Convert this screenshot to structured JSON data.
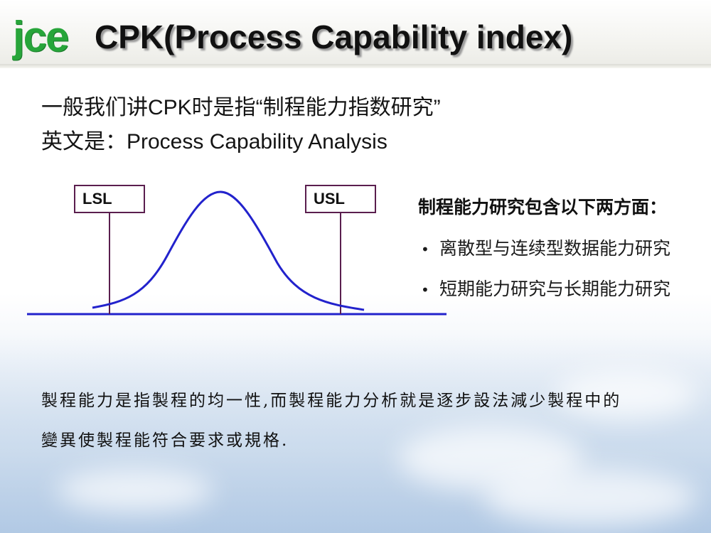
{
  "header": {
    "logo": "jce",
    "title": "CPK(Process Capability index)"
  },
  "intro": {
    "line1": "一般我们讲CPK时是指“制程能力指数研究”",
    "line2": "英文是：Process Capability Analysis"
  },
  "diagram": {
    "lsl_label": "LSL",
    "usl_label": "USL",
    "colors": {
      "curve": "#2222cc",
      "baseline": "#2222cc",
      "limit_lines": "#5a1e4e"
    }
  },
  "study": {
    "title": "制程能力研究包含以下两方面：",
    "items": [
      "离散型与连续型数据能力研究",
      "短期能力研究与长期能力研究"
    ]
  },
  "definition": {
    "line1": "製程能力是指製程的均一性,而製程能力分析就是逐步設法減少製程中的",
    "line2": "變異使製程能符合要求或規格."
  }
}
